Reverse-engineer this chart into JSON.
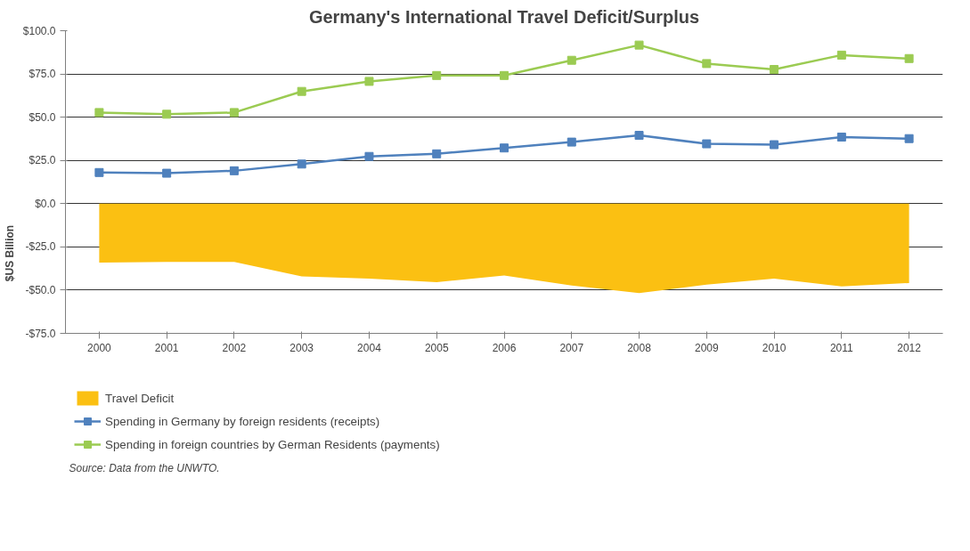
{
  "chart_data": {
    "type": "line",
    "title": "Germany's International Travel Deficit/Surplus",
    "ylabel": "$US Billion",
    "categories": [
      "2000",
      "2001",
      "2002",
      "2003",
      "2004",
      "2005",
      "2006",
      "2007",
      "2008",
      "2009",
      "2010",
      "2011",
      "2012"
    ],
    "series": [
      {
        "name": "Travel Deficit",
        "type": "area",
        "color": "#fbc012",
        "values": [
          -34.1,
          -33.7,
          -33.7,
          -42,
          -43.4,
          -45.4,
          -41.5,
          -47.3,
          -51.7,
          -46.8,
          -43.4,
          -47.8,
          -45.9
        ]
      },
      {
        "name": "Spending in Germany by foreign residents (receipts)",
        "color": "#4f81bd",
        "marker": "square",
        "values": [
          18,
          17.6,
          19,
          22.9,
          27.3,
          28.8,
          32.2,
          35.6,
          39.5,
          34.6,
          34.1,
          38.5,
          37.6
        ]
      },
      {
        "name": "Spending in foreign countries by German Residents (payments)",
        "color": "#9bcb52",
        "marker": "square",
        "values": [
          52.7,
          51.7,
          52.7,
          64.9,
          70.7,
          74.1,
          74.1,
          82.9,
          91.7,
          81,
          77.6,
          85.9,
          83.9
        ]
      }
    ],
    "ylim": [
      -75,
      100
    ],
    "yticks": [
      {
        "value": -75,
        "label": "-$75.0"
      },
      {
        "value": -50,
        "label": "-$50.0"
      },
      {
        "value": -25,
        "label": "-$25.0"
      },
      {
        "value": 0,
        "label": "$0.0"
      },
      {
        "value": 25,
        "label": "$25.0"
      },
      {
        "value": 50,
        "label": "$50.0"
      },
      {
        "value": 75,
        "label": "$75.0"
      },
      {
        "value": 100,
        "label": "$100.0"
      }
    ],
    "grid": "y",
    "legend": "bottom",
    "annotations": [
      "Source: Data from the UNWTO."
    ]
  }
}
